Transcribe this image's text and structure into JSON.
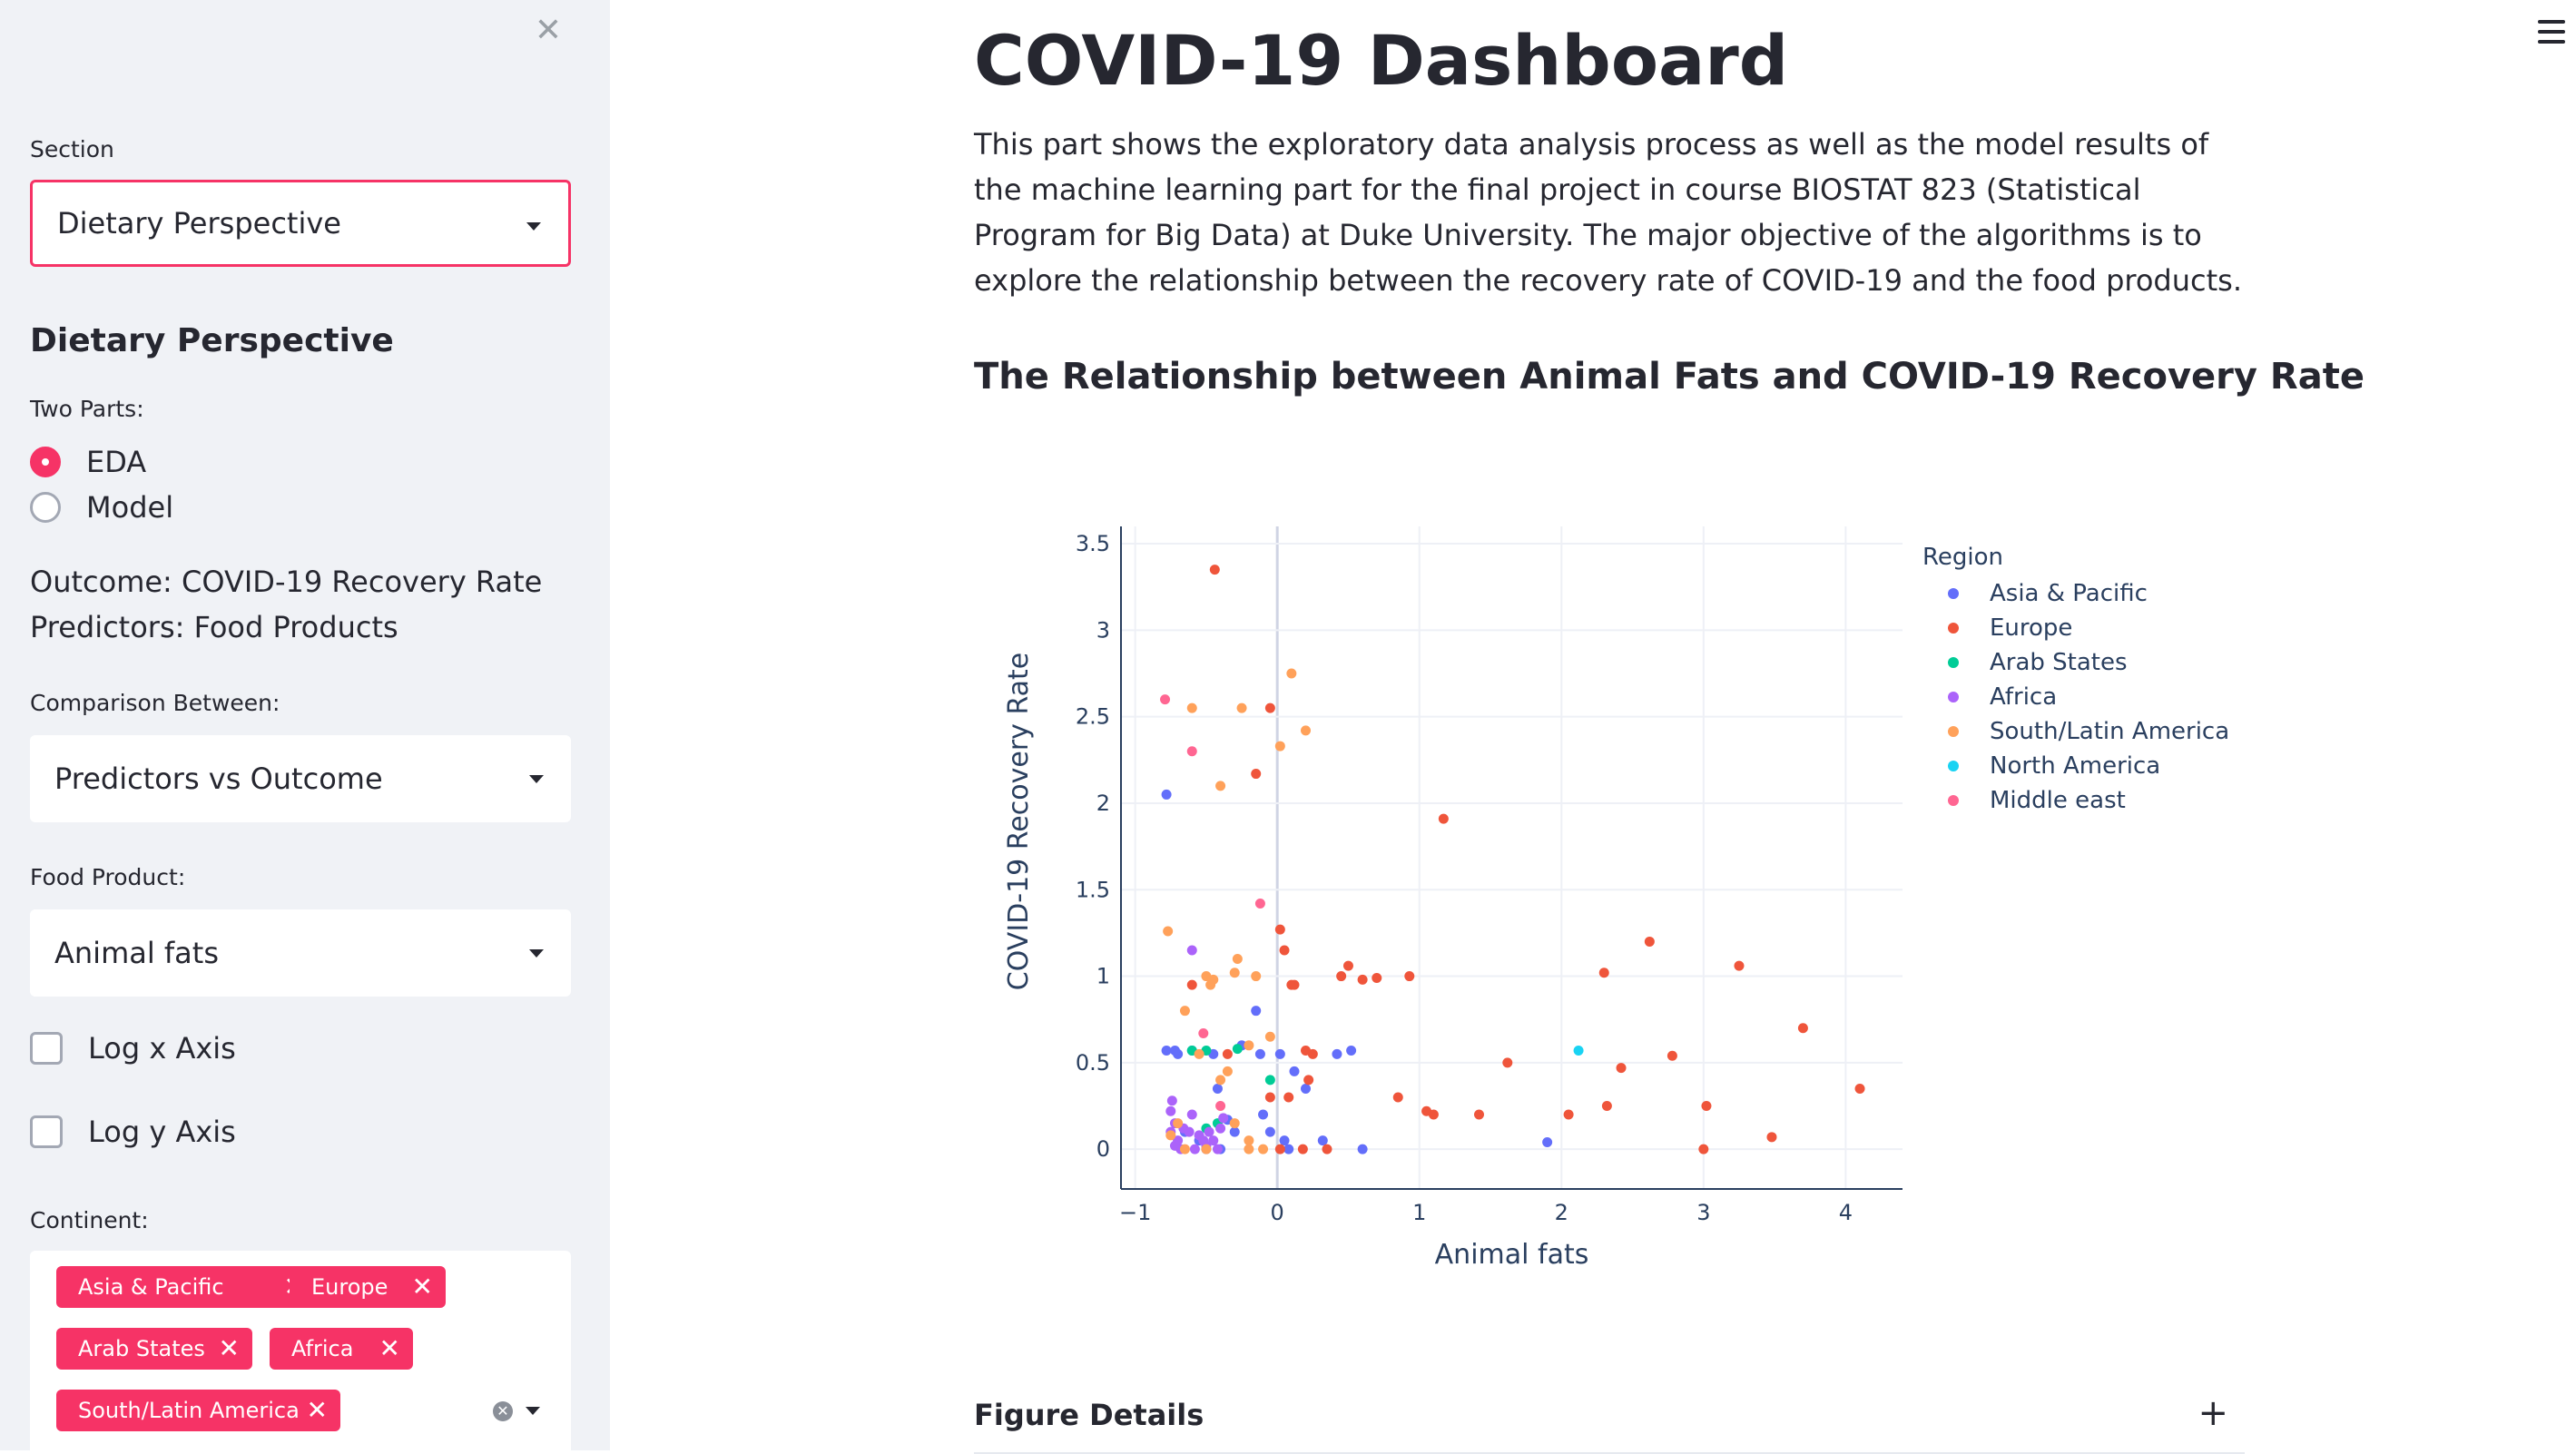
{
  "sidebar": {
    "close_glyph": "✕",
    "section_label": "Section",
    "section_value": "Dietary Perspective",
    "heading": "Dietary Perspective",
    "two_parts_label": "Two Parts:",
    "radio_options": [
      "EDA",
      "Model"
    ],
    "radio_selected": "EDA",
    "outcome_text": "Outcome: COVID-19 Recovery Rate",
    "predictors_text": "Predictors: Food Products",
    "comparison_label": "Comparison Between:",
    "comparison_value": "Predictors vs Outcome",
    "food_label": "Food Product:",
    "food_value": "Animal fats",
    "log_x_label": "Log x Axis",
    "log_y_label": "Log y Axis",
    "continent_label": "Continent:",
    "continent_tags": [
      "Asia & Pacific",
      "Europe",
      "Arab States",
      "Africa",
      "South/Latin America"
    ]
  },
  "main": {
    "title": "COVID-19 Dashboard",
    "description": "This part shows the exploratory data analysis process as well as the model results of the machine learning part for the final project in course BIOSTAT 823 (Statistical Program for Big Data) at Duke University. The major objective of the algorithms is to explore the relationship between the recovery rate of COVID-19 and the food products.",
    "chart_heading": "The Relationship between Animal Fats and COVID-19 Recovery Rate",
    "details_label": "Figure Details",
    "details_toggle": "+"
  },
  "colors": {
    "accent": "#f63366",
    "sidebar_bg": "#f0f2f6"
  },
  "chart_data": {
    "type": "scatter",
    "title": "",
    "xlabel": "Animal fats",
    "ylabel": "COVID-19 Recovery Rate",
    "xlim": [
      -1.1,
      4.4
    ],
    "ylim": [
      -0.23,
      3.6
    ],
    "x_ticks": [
      -1,
      0,
      1,
      2,
      3,
      4
    ],
    "x_tick_labels": [
      "−1",
      "0",
      "1",
      "2",
      "3",
      "4"
    ],
    "y_ticks": [
      0,
      0.5,
      1,
      1.5,
      2,
      2.5,
      3,
      3.5
    ],
    "y_tick_labels": [
      "0",
      "0.5",
      "1",
      "1.5",
      "2",
      "2.5",
      "3",
      "3.5"
    ],
    "grid": true,
    "legend_title": "Region",
    "legend_position": "top-right",
    "series": [
      {
        "name": "Asia & Pacific",
        "color": "#636efa",
        "x": [
          -0.78,
          -0.78,
          -0.7,
          -0.65,
          -0.55,
          -0.5,
          -0.42,
          -0.3,
          -0.15,
          -0.1,
          -0.05,
          0.02,
          0.05,
          0.12,
          0.2,
          0.32,
          0.42,
          0.52,
          0.6,
          -0.6,
          -0.45,
          -0.4,
          -0.35,
          -0.72,
          1.9,
          -0.12,
          -0.25,
          0.08
        ],
        "y": [
          2.05,
          0.57,
          0.55,
          0.1,
          0.05,
          0.0,
          0.35,
          0.1,
          0.8,
          0.2,
          0.1,
          0.55,
          0.05,
          0.45,
          0.35,
          0.05,
          0.55,
          0.57,
          0.0,
          0.57,
          0.55,
          0.0,
          0.17,
          0.57,
          0.04,
          0.55,
          0.6,
          0.0
        ]
      },
      {
        "name": "Europe",
        "color": "#ef553b",
        "x": [
          -0.44,
          -0.05,
          -0.15,
          0.02,
          0.05,
          0.1,
          0.2,
          0.35,
          0.45,
          0.5,
          0.6,
          0.7,
          0.93,
          1.17,
          1.05,
          1.1,
          1.42,
          1.62,
          2.05,
          2.3,
          2.32,
          2.42,
          2.62,
          2.78,
          3.0,
          3.02,
          3.25,
          3.48,
          3.7,
          4.1,
          -0.6,
          -0.35,
          0.08,
          0.18,
          0.25,
          0.85,
          0.12,
          0.22,
          -0.05,
          0.02
        ],
        "y": [
          3.35,
          2.55,
          2.17,
          1.27,
          1.15,
          0.95,
          0.57,
          0.0,
          1.0,
          1.06,
          0.98,
          0.99,
          1.0,
          1.91,
          0.22,
          0.2,
          0.2,
          0.5,
          0.2,
          1.02,
          0.25,
          0.47,
          1.2,
          0.54,
          0.0,
          0.25,
          1.06,
          0.07,
          0.7,
          0.35,
          0.95,
          0.55,
          0.3,
          0.0,
          0.55,
          0.3,
          0.95,
          0.4,
          0.3,
          0.0
        ]
      },
      {
        "name": "Arab States",
        "color": "#00cc96",
        "x": [
          -0.6,
          -0.5,
          -0.28,
          -0.05,
          -0.5,
          -0.42
        ],
        "y": [
          0.57,
          0.57,
          0.58,
          0.4,
          0.12,
          0.15
        ]
      },
      {
        "name": "Africa",
        "color": "#ab63fa",
        "x": [
          -0.75,
          -0.72,
          -0.7,
          -0.68,
          -0.66,
          -0.6,
          -0.58,
          -0.55,
          -0.5,
          -0.48,
          -0.45,
          -0.42,
          -0.4,
          -0.38,
          -0.62,
          -0.74,
          -0.72,
          -0.6,
          -0.52,
          -0.75
        ],
        "y": [
          0.1,
          0.15,
          0.05,
          0.0,
          0.12,
          1.15,
          0.0,
          0.08,
          0.02,
          0.1,
          0.05,
          0.0,
          0.12,
          0.18,
          0.1,
          0.28,
          0.02,
          0.2,
          0.05,
          0.22
        ]
      },
      {
        "name": "South/Latin America",
        "color": "#ffa15a",
        "x": [
          -0.77,
          -0.65,
          -0.5,
          -0.3,
          -0.28,
          -0.15,
          -0.2,
          0.02,
          0.1,
          0.2,
          -0.4,
          -0.47,
          -0.25,
          -0.2,
          -0.05,
          -0.1,
          -0.3,
          -0.5,
          -0.4,
          -0.65,
          -0.55,
          -0.35,
          -0.45,
          -0.2,
          -0.6,
          -0.75,
          -0.7
        ],
        "y": [
          1.26,
          0.8,
          1.0,
          1.02,
          1.1,
          1.0,
          0.6,
          2.33,
          2.75,
          2.42,
          2.1,
          0.95,
          2.55,
          0.0,
          0.65,
          0.0,
          0.15,
          0.0,
          0.4,
          0.0,
          0.55,
          0.45,
          0.98,
          0.05,
          2.55,
          0.08,
          0.15
        ]
      },
      {
        "name": "North America",
        "color": "#19d3f3",
        "x": [
          2.12
        ],
        "y": [
          0.57
        ]
      },
      {
        "name": "Middle east",
        "color": "#ff6692",
        "x": [
          -0.79,
          -0.6,
          -0.12,
          -0.52,
          -0.4
        ],
        "y": [
          2.6,
          2.3,
          1.42,
          0.67,
          0.25
        ]
      }
    ]
  }
}
